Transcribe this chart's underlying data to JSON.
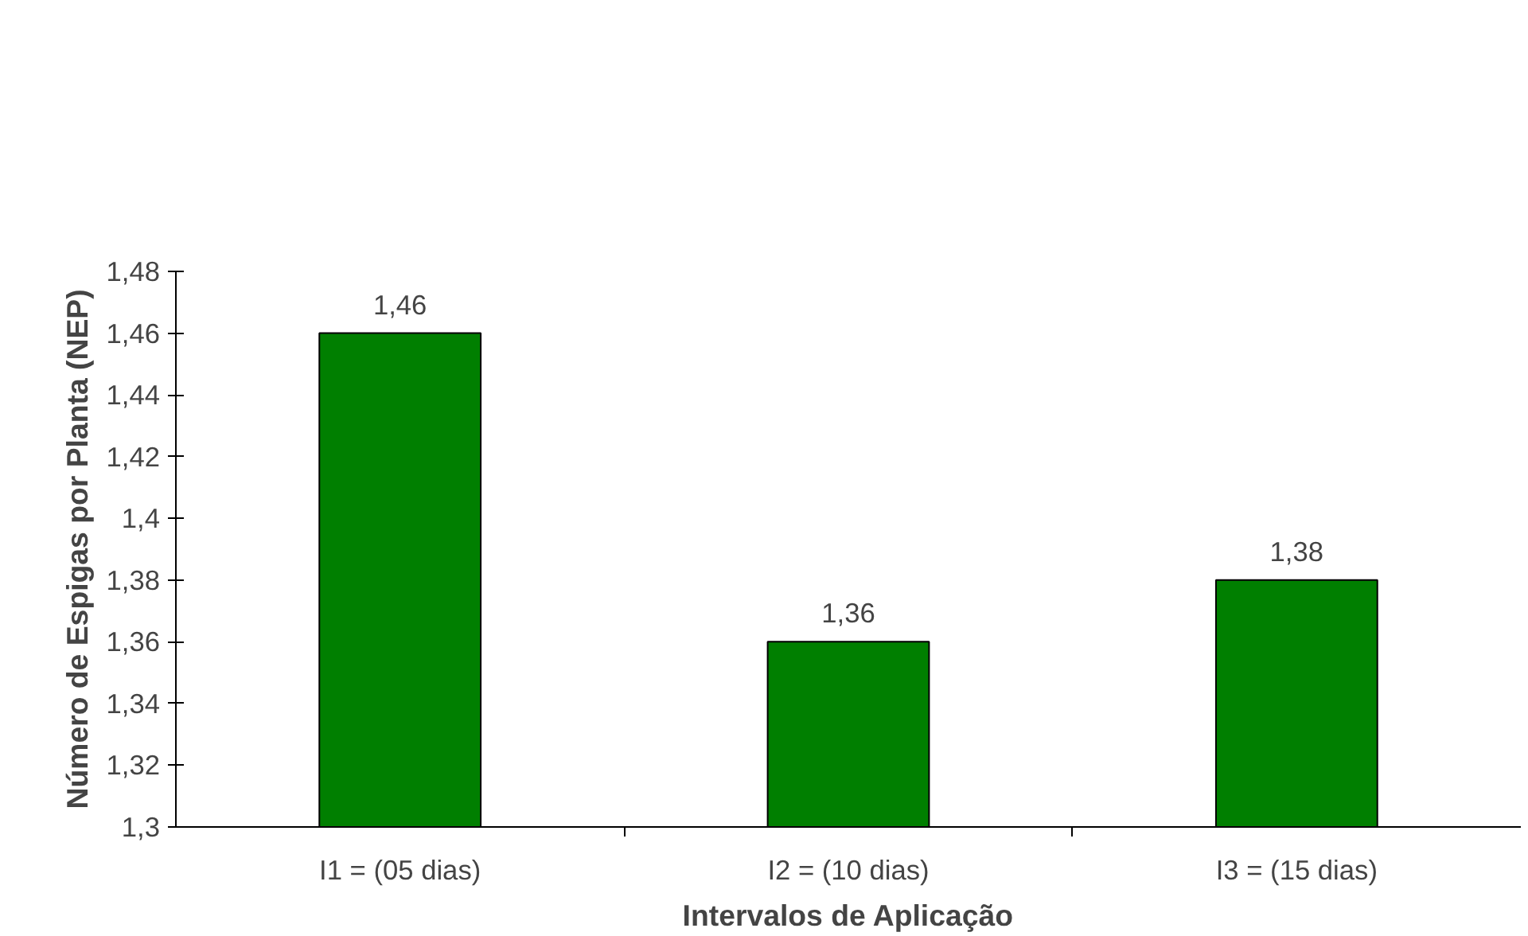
{
  "chart_data": {
    "type": "bar",
    "xlabel": "Intervalos de Aplicação",
    "ylabel": "Número de Espigas por Planta (NEP)",
    "categories": [
      "I1 = (05 dias)",
      "I2 = (10 dias)",
      "I3 = (15 dias)"
    ],
    "values": [
      1.46,
      1.36,
      1.38
    ],
    "value_labels": [
      "1,46",
      "1,36",
      "1,38"
    ],
    "color": "#007f00",
    "ylim": [
      1.3,
      1.48
    ],
    "yticks": [
      {
        "value": 1.3,
        "label": "1,3"
      },
      {
        "value": 1.32,
        "label": "1,32"
      },
      {
        "value": 1.34,
        "label": "1,34"
      },
      {
        "value": 1.36,
        "label": "1,36"
      },
      {
        "value": 1.38,
        "label": "1,38"
      },
      {
        "value": 1.4,
        "label": "1,4"
      },
      {
        "value": 1.42,
        "label": "1,42"
      },
      {
        "value": 1.44,
        "label": "1,44"
      },
      {
        "value": 1.46,
        "label": "1,46"
      },
      {
        "value": 1.48,
        "label": "1,48"
      }
    ],
    "grid": false
  }
}
